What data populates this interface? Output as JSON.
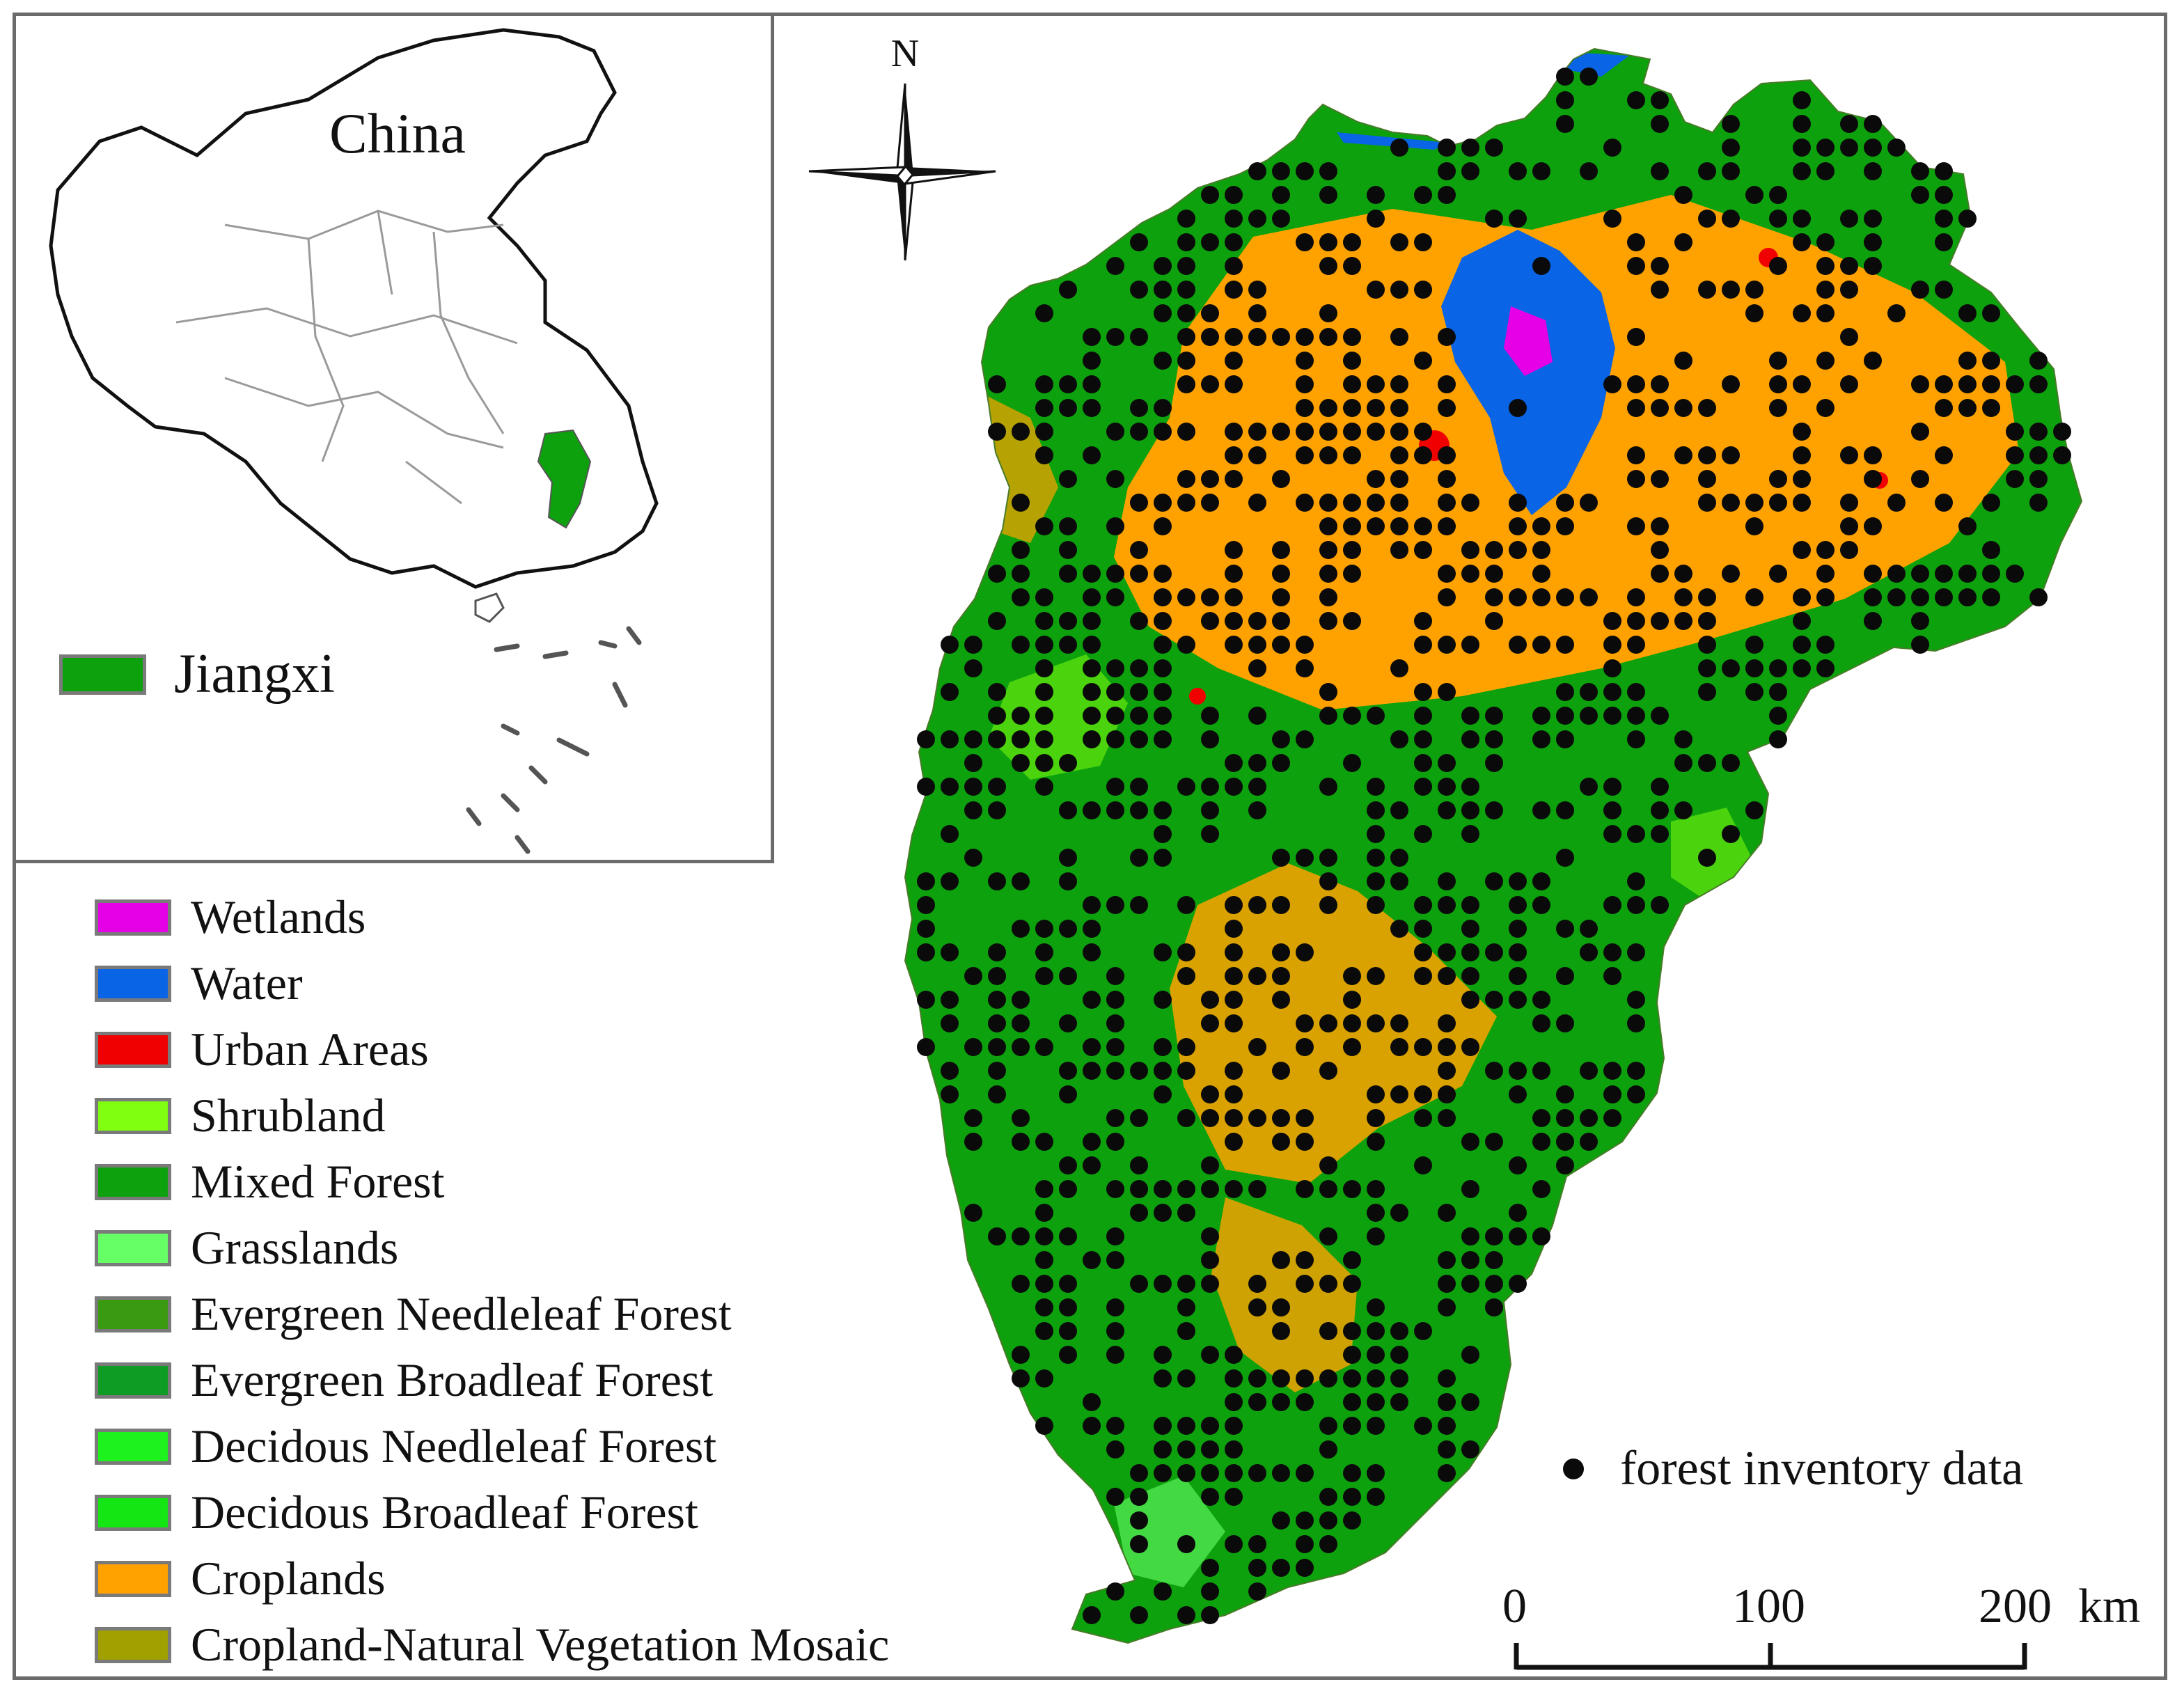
{
  "inset": {
    "title": "China",
    "region_label": "Jiangxi",
    "region_color": "#0da10d"
  },
  "legend": {
    "items": [
      {
        "label": "Wetlands",
        "color": "#e600e6"
      },
      {
        "label": "Water",
        "color": "#0a64e6"
      },
      {
        "label": "Urban Areas",
        "color": "#f00000"
      },
      {
        "label": "Shrubland",
        "color": "#80ff10"
      },
      {
        "label": "Mixed Forest",
        "color": "#0da10d"
      },
      {
        "label": "Grasslands",
        "color": "#66ff66"
      },
      {
        "label": "Evergreen Needleleaf Forest",
        "color": "#3a9a12"
      },
      {
        "label": "Evergreen Broadleaf Forest",
        "color": "#0f9c24"
      },
      {
        "label": "Decidous Needleleaf Forest",
        "color": "#1ef21e"
      },
      {
        "label": "Decidous Broadleaf Forest",
        "color": "#14e614"
      },
      {
        "label": "Croplands",
        "color": "#ffa200"
      },
      {
        "label": "Cropland-Natural Vegetation Mosaic",
        "color": "#a0a000"
      }
    ]
  },
  "north_arrow": {
    "label": "N",
    "icon": "north-arrow-icon"
  },
  "points_legend": {
    "label": "forest inventory data",
    "color": "#0a0a0a"
  },
  "scale_bar": {
    "ticks": [
      "0",
      "100",
      "200"
    ],
    "unit": "km",
    "values": [
      0,
      100,
      200
    ]
  }
}
